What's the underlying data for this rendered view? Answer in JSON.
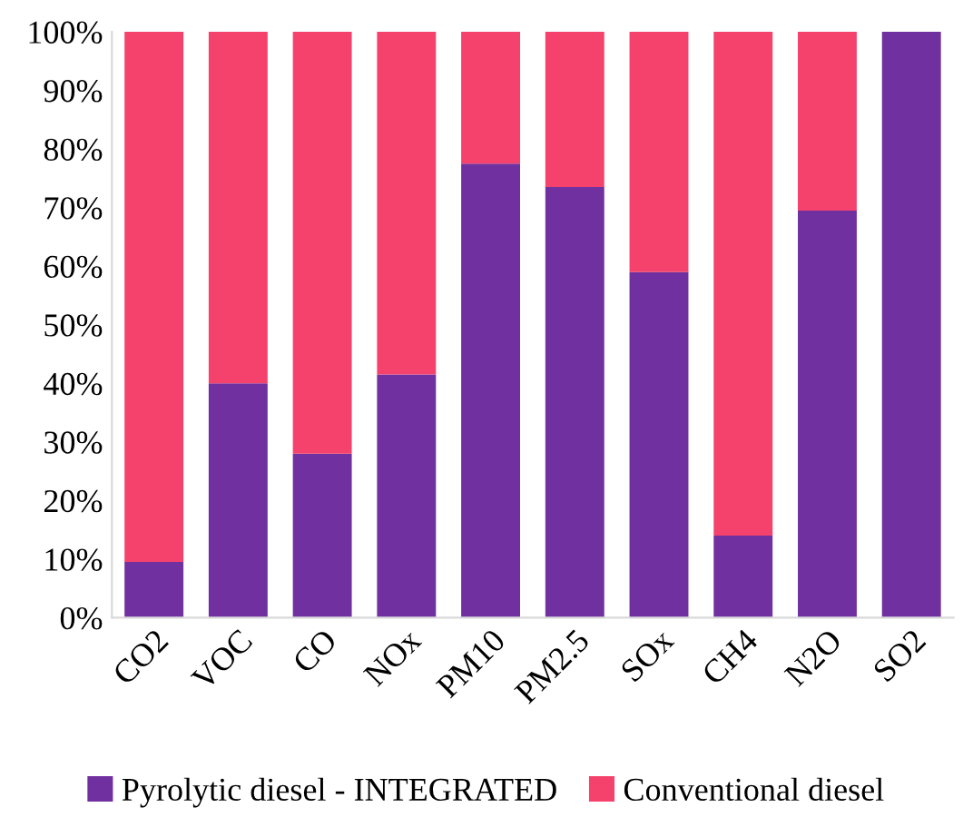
{
  "chart_data": {
    "type": "bar",
    "stacked": true,
    "categories": [
      "CO2",
      "VOC",
      "CO",
      "NOx",
      "PM10",
      "PM2.5",
      "SOx",
      "CH4",
      "N2O",
      "SO2"
    ],
    "series": [
      {
        "name": "Pyrolytic diesel - INTEGRATED",
        "color": "#7030a0",
        "values": [
          9.5,
          40,
          28,
          41.5,
          77.5,
          73.5,
          59,
          14,
          69.5,
          100
        ]
      },
      {
        "name": "Conventional diesel",
        "color": "#f5426c",
        "values": [
          90.5,
          60,
          72,
          58.5,
          22.5,
          26.5,
          41,
          86,
          30.5,
          0
        ]
      }
    ],
    "ylim": [
      0,
      100
    ],
    "yticks": [
      {
        "value": 0,
        "label": "0%"
      },
      {
        "value": 10,
        "label": "10%"
      },
      {
        "value": 20,
        "label": "20%"
      },
      {
        "value": 30,
        "label": "30%"
      },
      {
        "value": 40,
        "label": "40%"
      },
      {
        "value": 50,
        "label": "50%"
      },
      {
        "value": 60,
        "label": "60%"
      },
      {
        "value": 70,
        "label": "70%"
      },
      {
        "value": 80,
        "label": "80%"
      },
      {
        "value": 90,
        "label": "90%"
      },
      {
        "value": 100,
        "label": "100%"
      }
    ],
    "grid": false,
    "legend": "bottom"
  }
}
